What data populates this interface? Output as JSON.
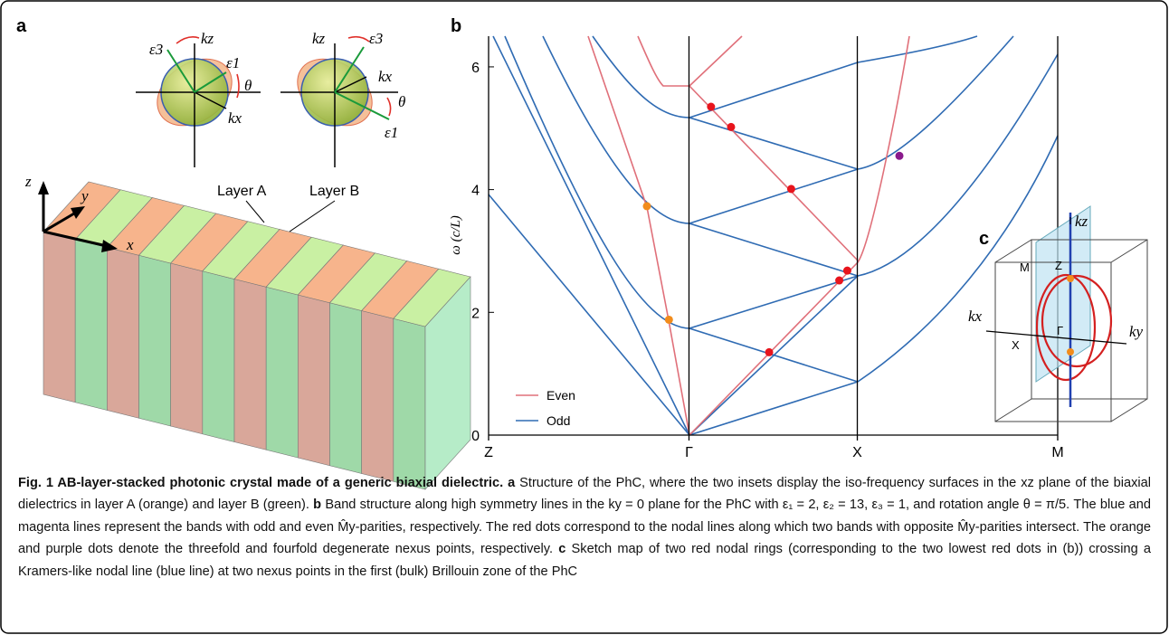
{
  "panel_a": {
    "letter": "a",
    "axes": [
      "z",
      "y",
      "x"
    ],
    "layers": [
      "Layer A",
      "Layer B"
    ],
    "inset_a": [
      "kz",
      "kx",
      "ε3",
      "ε1",
      "θ"
    ],
    "inset_b": [
      "kz",
      "kx",
      "ε3",
      "ε1",
      "θ"
    ]
  },
  "panel_b": {
    "letter": "b",
    "ylabel": "ω (c/L)",
    "ylim": [
      0,
      6.5
    ],
    "yticks": [
      0,
      2,
      4,
      6
    ],
    "xlim": [
      0,
      2.84
    ],
    "xticks": [
      {
        "value": 0,
        "label": "Z"
      },
      {
        "value": 1,
        "label": "Γ"
      },
      {
        "value": 1.84,
        "label": "X"
      },
      {
        "value": 2.84,
        "label": "M"
      }
    ],
    "legend": [
      {
        "name": "Even",
        "color": "#e0707a"
      },
      {
        "name": "Odd",
        "color": "#2f6bb3"
      }
    ],
    "points": [
      {
        "x": 0.79,
        "y": 3.73,
        "color": "#f28c1c"
      },
      {
        "x": 0.9,
        "y": 1.88,
        "color": "#f28c1c"
      },
      {
        "x": 1.11,
        "y": 5.35,
        "color": "#e8141c"
      },
      {
        "x": 1.21,
        "y": 5.02,
        "color": "#e8141c"
      },
      {
        "x": 1.51,
        "y": 4.01,
        "color": "#e8141c"
      },
      {
        "x": 1.79,
        "y": 2.68,
        "color": "#e8141c"
      },
      {
        "x": 1.75,
        "y": 2.52,
        "color": "#e8141c"
      },
      {
        "x": 1.4,
        "y": 1.35,
        "color": "#e8141c"
      },
      {
        "x": 2.05,
        "y": 4.55,
        "color": "#8a1a8c"
      }
    ]
  },
  "panel_c": {
    "letter": "c",
    "labels": [
      "kz",
      "kx",
      "ky",
      "M",
      "Z",
      "X",
      "Γ"
    ]
  },
  "caption": {
    "title": "Fig. 1 AB-layer-stacked photonic crystal made of a generic biaxial dielectric.",
    "parts": [
      {
        "label": "a",
        "text": "Structure of the PhC, where the two insets display the iso-frequency surfaces in the xz plane of the biaxial dielectrics in layer A (orange) and layer B (green)."
      },
      {
        "label": "b",
        "text": "Band structure along high symmetry lines in the ky = 0 plane for the PhC with ε₁ = 2, ε₂ = 13, ε₃ = 1, and rotation angle θ = π/5. The blue and magenta lines represent the bands with odd and even M̂y-parities, respectively. The red dots correspond to the nodal lines along which two bands with opposite M̂y-parities intersect. The orange and purple dots denote the threefold and fourfold degenerate nexus points, respectively."
      },
      {
        "label": "c",
        "text": "Sketch map of two red nodal rings (corresponding to the two lowest red dots in (b)) crossing a Kramers-like nodal line (blue line) at two nexus points in the first (bulk) Brillouin zone of the PhC"
      }
    ]
  }
}
